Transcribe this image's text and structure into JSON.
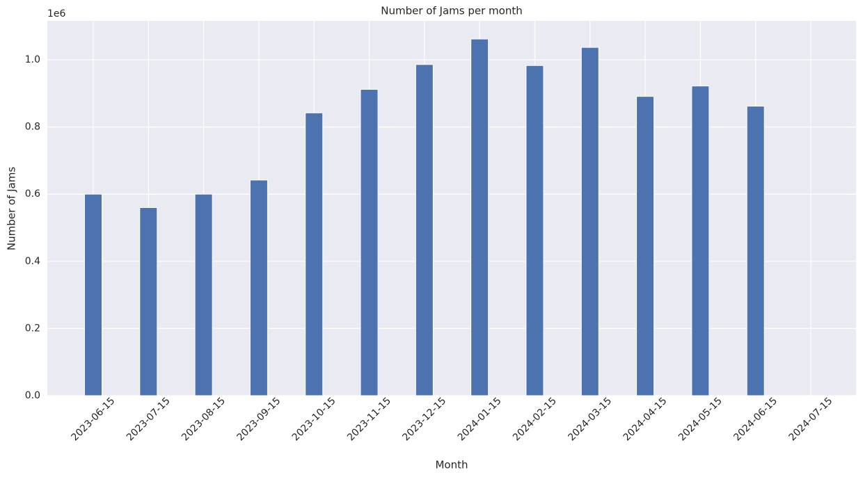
{
  "chart_data": {
    "type": "bar",
    "title": "Number of Jams per month",
    "x_label": "Month",
    "y_label": "Number of Jams",
    "y_offset_label": "1e6",
    "categories": [
      "2023-06-15",
      "2023-07-15",
      "2023-08-15",
      "2023-09-15",
      "2023-10-15",
      "2023-11-15",
      "2023-12-15",
      "2024-01-15",
      "2024-02-15",
      "2024-03-15",
      "2024-04-15",
      "2024-05-15",
      "2024-06-15",
      "2024-07-15"
    ],
    "values": [
      600000,
      560000,
      600000,
      642000,
      842000,
      912000,
      986000,
      1062000,
      983000,
      1037000,
      891000,
      922000,
      862000,
      null
    ],
    "color": "#4c72b0",
    "ylim": [
      0,
      1116000
    ],
    "yticks": [
      {
        "value": 0,
        "label": "0.0"
      },
      {
        "value": 200000,
        "label": "0.2"
      },
      {
        "value": 400000,
        "label": "0.4"
      },
      {
        "value": 600000,
        "label": "0.6"
      },
      {
        "value": 800000,
        "label": "0.8"
      },
      {
        "value": 1000000,
        "label": "1.0"
      }
    ],
    "grid": true
  }
}
